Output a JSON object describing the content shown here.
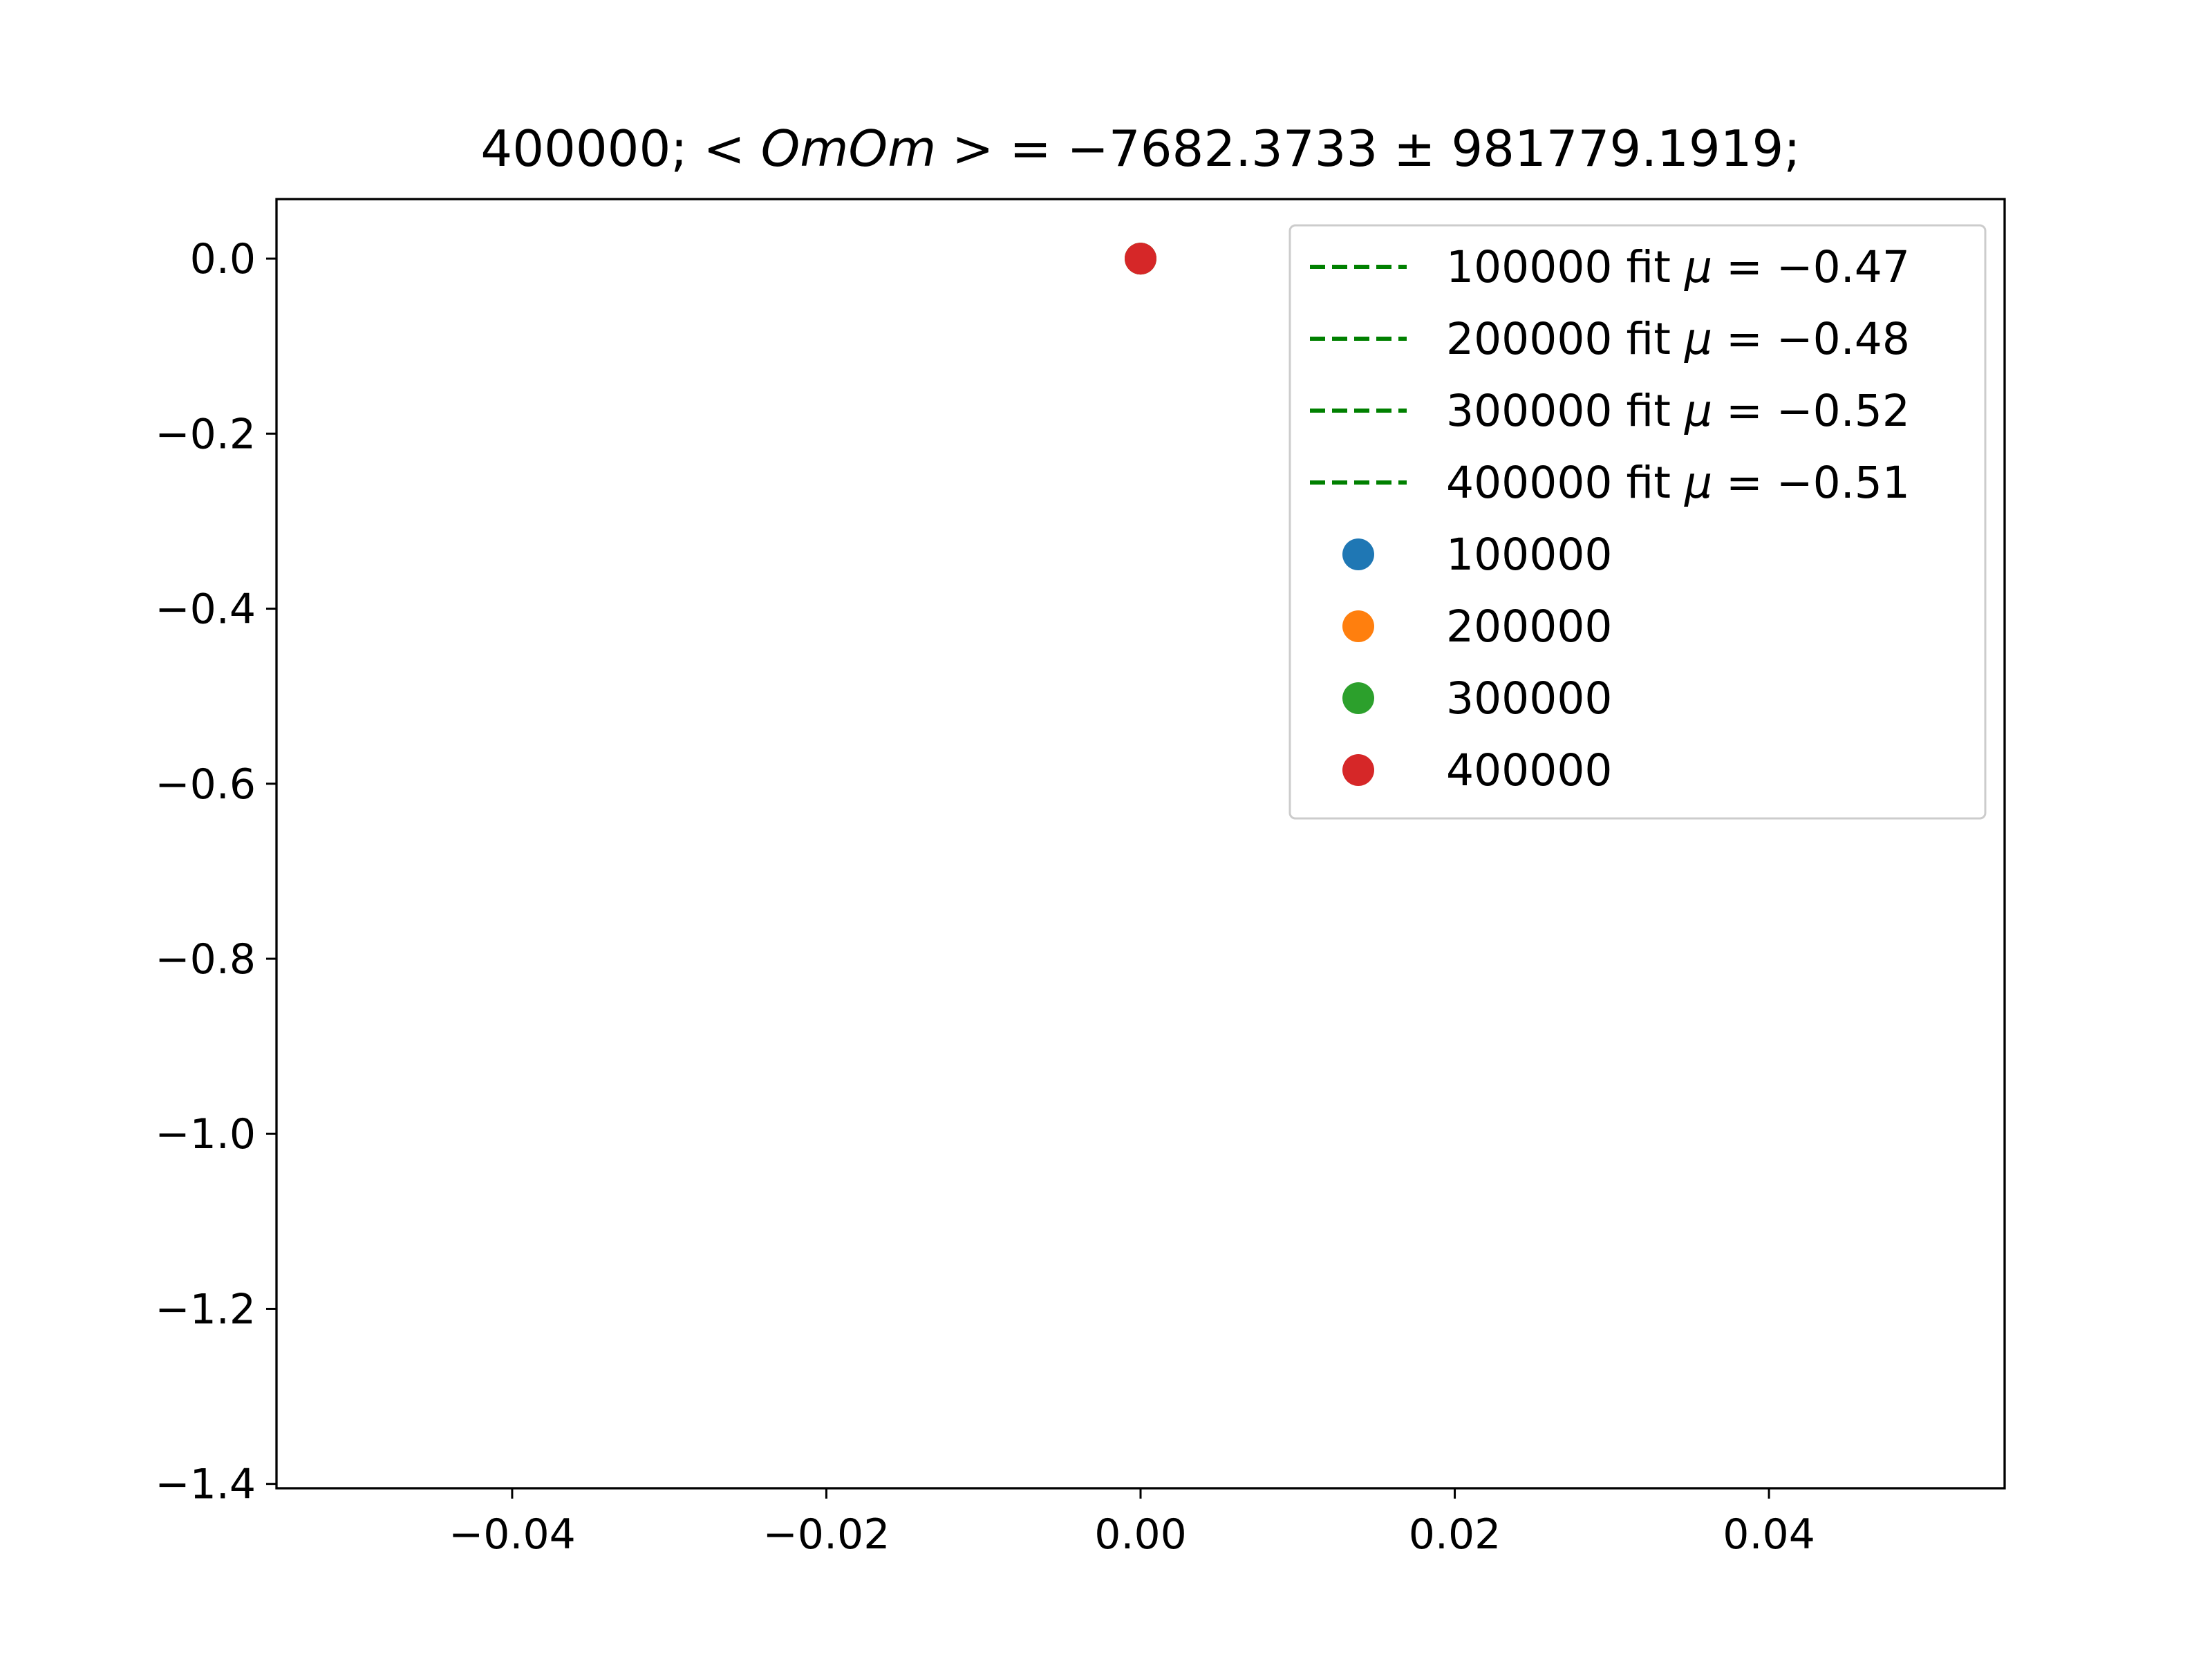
{
  "chart_data": {
    "type": "scatter",
    "title": "400000; <OmOm> = −7682.3733 ± 981779.1919;",
    "title_parts": {
      "prefix": "400000; ",
      "lt": "< ",
      "var": "OmOm",
      "gt": " > = ",
      "value": "−7682.3733 ± 981779.1919;"
    },
    "xlabel": "",
    "ylabel": "",
    "xlim": [
      -0.055,
      0.055
    ],
    "ylim": [
      -1.405,
      0.068
    ],
    "x_ticks": [
      -0.04,
      -0.02,
      0.0,
      0.02,
      0.04
    ],
    "x_tick_labels": [
      "−0.04",
      "−0.02",
      "0.00",
      "0.02",
      "0.04"
    ],
    "y_ticks": [
      0.0,
      -0.2,
      -0.4,
      -0.6,
      -0.8,
      -1.0,
      -1.2,
      -1.4
    ],
    "y_tick_labels": [
      "0.0",
      "−0.2",
      "−0.4",
      "−0.6",
      "−0.8",
      "−1.0",
      "−1.2",
      "−1.4"
    ],
    "grid": false,
    "legend_position": "top-right",
    "legend": [
      {
        "kind": "line",
        "style": "dashed",
        "color": "#008000",
        "run": "100000",
        "mid": " fit ",
        "mu_sym": "μ",
        "eq": " = −0.47"
      },
      {
        "kind": "line",
        "style": "dashed",
        "color": "#008000",
        "run": "200000",
        "mid": " fit ",
        "mu_sym": "μ",
        "eq": " = −0.48"
      },
      {
        "kind": "line",
        "style": "dashed",
        "color": "#008000",
        "run": "300000",
        "mid": " fit ",
        "mu_sym": "μ",
        "eq": " = −0.52"
      },
      {
        "kind": "line",
        "style": "dashed",
        "color": "#008000",
        "run": "400000",
        "mid": " fit ",
        "mu_sym": "μ",
        "eq": " = −0.51"
      },
      {
        "kind": "marker",
        "color": "#1f77b4",
        "label": "100000"
      },
      {
        "kind": "marker",
        "color": "#ff7f0e",
        "label": "200000"
      },
      {
        "kind": "marker",
        "color": "#2ca02c",
        "label": "300000"
      },
      {
        "kind": "marker",
        "color": "#d62728",
        "label": "400000"
      }
    ],
    "series": [
      {
        "name": "100000",
        "color": "#1f77b4",
        "points": [
          [
            0.0,
            0.0
          ]
        ]
      },
      {
        "name": "200000",
        "color": "#ff7f0e",
        "points": [
          [
            0.0,
            0.0
          ]
        ]
      },
      {
        "name": "300000",
        "color": "#2ca02c",
        "points": [
          [
            0.0,
            0.0
          ]
        ]
      },
      {
        "name": "400000",
        "color": "#d62728",
        "points": [
          [
            0.0,
            0.0
          ]
        ]
      }
    ]
  }
}
